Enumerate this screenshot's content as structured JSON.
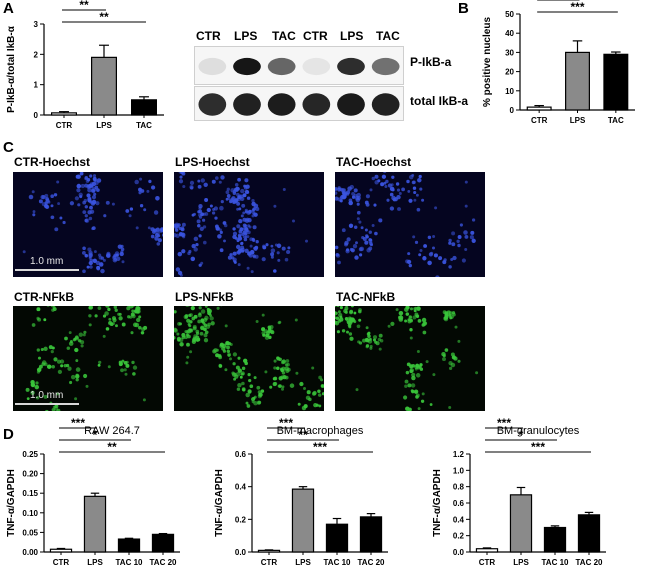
{
  "panels": {
    "a": "A",
    "b": "B",
    "c": "C",
    "d": "D"
  },
  "blot": {
    "lanes": [
      "CTR",
      "LPS",
      "TAC",
      "CTR",
      "LPS",
      "TAC"
    ],
    "row_labels": [
      "P-IkB-a",
      "total IkB-a"
    ],
    "p_intensity": [
      0.08,
      0.95,
      0.6,
      0.05,
      0.85,
      0.55
    ],
    "total_intensity": [
      0.85,
      0.9,
      0.92,
      0.88,
      0.93,
      0.9
    ]
  },
  "micrographs": {
    "hoechst": [
      "CTR-Hoechst",
      "LPS-Hoechst",
      "TAC-Hoechst"
    ],
    "nfkb": [
      "CTR-NFkB",
      "LPS-NFkB",
      "TAC-NFkB"
    ],
    "scale": "1.0 mm",
    "hoechst_color": "#3a54e0",
    "nfkb_color": "#39c43a"
  },
  "chart_data": [
    {
      "id": "A",
      "type": "bar",
      "title": "",
      "ylabel": "P-IkB-α/total IkB-α",
      "categories": [
        "CTR",
        "LPS",
        "TAC"
      ],
      "values": [
        0.07,
        1.9,
        0.5
      ],
      "errors": [
        0.04,
        0.4,
        0.1
      ],
      "colors": [
        "#ffffff",
        "#8a8a8a",
        "#000000"
      ],
      "ylim": [
        0,
        3
      ],
      "yticks": [
        0,
        1,
        2,
        3
      ],
      "ytick_labels": [
        "0",
        "1",
        "2",
        "3"
      ],
      "sig": [
        {
          "from": 0,
          "to": 1,
          "label": "**"
        },
        {
          "from": 0,
          "to": 2,
          "label": "**"
        }
      ]
    },
    {
      "id": "B",
      "type": "bar",
      "title": "",
      "ylabel": "% positive nucleus",
      "categories": [
        "CTR",
        "LPS",
        "TAC"
      ],
      "values": [
        1.5,
        30,
        29
      ],
      "errors": [
        0.8,
        6,
        1.2
      ],
      "colors": [
        "#ffffff",
        "#8a8a8a",
        "#000000"
      ],
      "ylim": [
        0,
        50
      ],
      "yticks": [
        0,
        10,
        20,
        30,
        40,
        50
      ],
      "ytick_labels": [
        "0",
        "10",
        "20",
        "30",
        "40",
        "50"
      ],
      "sig": [
        {
          "from": 0,
          "to": 1,
          "label": "***"
        },
        {
          "from": 0,
          "to": 2,
          "label": "***"
        }
      ]
    },
    {
      "id": "D1",
      "type": "bar",
      "title": "RAW 264.7",
      "ylabel": "TNF-α/GAPDH",
      "categories": [
        "CTR",
        "LPS",
        "TAC 10",
        "TAC 20"
      ],
      "values": [
        0.007,
        0.142,
        0.033,
        0.045
      ],
      "errors": [
        0.002,
        0.008,
        0.002,
        0.002
      ],
      "colors": [
        "#ffffff",
        "#8a8a8a",
        "#000000",
        "#000000"
      ],
      "ylim": [
        0,
        0.25
      ],
      "yticks": [
        0,
        0.05,
        0.1,
        0.15,
        0.2,
        0.25
      ],
      "ytick_labels": [
        "0.00",
        "0.05",
        "0.10",
        "0.15",
        "0.20",
        "0.25"
      ],
      "sig": [
        {
          "from": 0,
          "to": 1,
          "label": "***"
        },
        {
          "from": 0,
          "to": 2,
          "label": "*"
        },
        {
          "from": 0,
          "to": 3,
          "label": "**"
        }
      ]
    },
    {
      "id": "D2",
      "type": "bar",
      "title": "BM-macrophages",
      "ylabel": "TNF-α/GAPDH",
      "categories": [
        "CTR",
        "LPS",
        "TAC 10",
        "TAC 20"
      ],
      "values": [
        0.01,
        0.385,
        0.17,
        0.215
      ],
      "errors": [
        0.003,
        0.015,
        0.035,
        0.02
      ],
      "colors": [
        "#ffffff",
        "#8a8a8a",
        "#000000",
        "#000000"
      ],
      "ylim": [
        0,
        0.6
      ],
      "yticks": [
        0,
        0.2,
        0.4,
        0.6
      ],
      "ytick_labels": [
        "0.0",
        "0.2",
        "0.4",
        "0.6"
      ],
      "sig": [
        {
          "from": 0,
          "to": 1,
          "label": "***"
        },
        {
          "from": 0,
          "to": 2,
          "label": "**"
        },
        {
          "from": 0,
          "to": 3,
          "label": "***"
        }
      ]
    },
    {
      "id": "D3",
      "type": "bar",
      "title": "BM-granulocytes",
      "ylabel": "TNF-α/GAPDH",
      "categories": [
        "CTR",
        "LPS",
        "TAC 10",
        "TAC 20"
      ],
      "values": [
        0.04,
        0.7,
        0.3,
        0.455
      ],
      "errors": [
        0.01,
        0.09,
        0.02,
        0.03
      ],
      "colors": [
        "#ffffff",
        "#8a8a8a",
        "#000000",
        "#000000"
      ],
      "ylim": [
        0,
        1.2
      ],
      "yticks": [
        0,
        0.2,
        0.4,
        0.6,
        0.8,
        1.0,
        1.2
      ],
      "ytick_labels": [
        "0.0",
        "0.2",
        "0.4",
        "0.6",
        "0.8",
        "1.0",
        "1.2"
      ],
      "sig": [
        {
          "from": 0,
          "to": 1,
          "label": "***"
        },
        {
          "from": 0,
          "to": 2,
          "label": "*"
        },
        {
          "from": 0,
          "to": 3,
          "label": "***"
        }
      ]
    }
  ]
}
